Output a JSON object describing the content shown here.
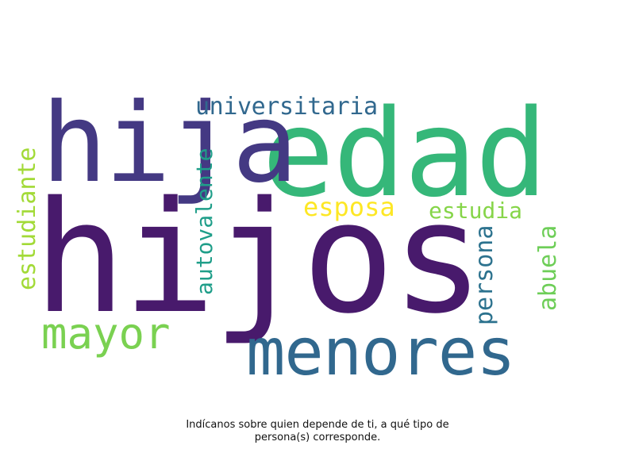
{
  "words": [
    {
      "text": "hijos",
      "color": "#481a6c"
    },
    {
      "text": "edad",
      "color": "#35b779"
    },
    {
      "text": "hija",
      "color": "#443983"
    },
    {
      "text": "menores",
      "color": "#31688e"
    },
    {
      "text": "mayor",
      "color": "#7ad151"
    },
    {
      "text": "universitaria",
      "color": "#31688e"
    },
    {
      "text": "esposa",
      "color": "#fde725"
    },
    {
      "text": "estudia",
      "color": "#86d549"
    },
    {
      "text": "estudiante",
      "color": "#a2da37"
    },
    {
      "text": "autovalente",
      "color": "#1f9e89"
    },
    {
      "text": "persona",
      "color": "#2c728e"
    },
    {
      "text": "abuela",
      "color": "#6ece58"
    }
  ],
  "caption": {
    "line1": "Indícanos sobre quien depende de ti, a qué tipo de",
    "line2": "persona(s) corresponde."
  }
}
